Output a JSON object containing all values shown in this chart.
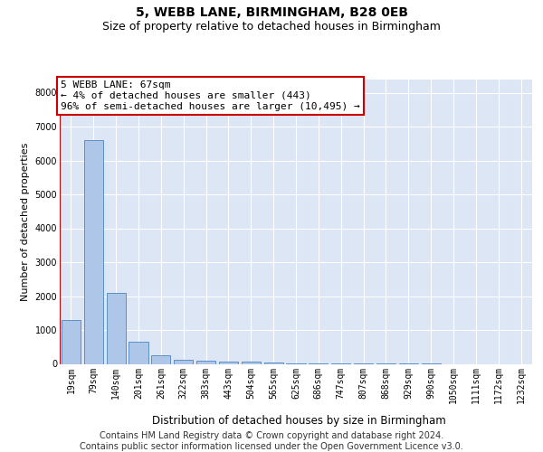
{
  "title": "5, WEBB LANE, BIRMINGHAM, B28 0EB",
  "subtitle": "Size of property relative to detached houses in Birmingham",
  "xlabel": "Distribution of detached houses by size in Birmingham",
  "ylabel": "Number of detached properties",
  "footer_line1": "Contains HM Land Registry data © Crown copyright and database right 2024.",
  "footer_line2": "Contains public sector information licensed under the Open Government Licence v3.0.",
  "annotation_line1": "5 WEBB LANE: 67sqm",
  "annotation_line2": "← 4% of detached houses are smaller (443)",
  "annotation_line3": "96% of semi-detached houses are larger (10,495) →",
  "bar_labels": [
    "19sqm",
    "79sqm",
    "140sqm",
    "201sqm",
    "261sqm",
    "322sqm",
    "383sqm",
    "443sqm",
    "504sqm",
    "565sqm",
    "625sqm",
    "686sqm",
    "747sqm",
    "807sqm",
    "868sqm",
    "929sqm",
    "990sqm",
    "1050sqm",
    "1111sqm",
    "1172sqm",
    "1232sqm"
  ],
  "bar_values": [
    1300,
    6600,
    2100,
    650,
    250,
    130,
    100,
    80,
    60,
    30,
    10,
    5,
    3,
    2,
    1,
    1,
    1,
    0,
    0,
    0,
    0
  ],
  "bar_color": "#aec6e8",
  "bar_edge_color": "#5b8fc4",
  "red_line_x": -0.5,
  "red_line_color": "#cc0000",
  "annotation_box_edgecolor": "#cc0000",
  "ylim": [
    0,
    8400
  ],
  "yticks": [
    0,
    1000,
    2000,
    3000,
    4000,
    5000,
    6000,
    7000,
    8000
  ],
  "background_color": "#dde6f5",
  "grid_color": "#ffffff",
  "fig_background": "#ffffff",
  "title_fontsize": 10,
  "subtitle_fontsize": 9,
  "xlabel_fontsize": 8.5,
  "ylabel_fontsize": 8,
  "tick_fontsize": 7,
  "annotation_fontsize": 8,
  "footer_fontsize": 7
}
